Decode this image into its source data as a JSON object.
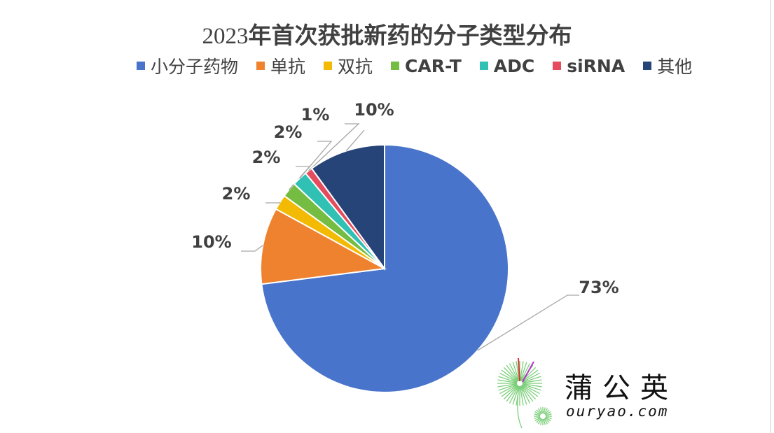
{
  "chart_data": {
    "type": "pie",
    "title_year": "2023",
    "title_rest": "年首次获批新药的分子类型分布",
    "legend_position": "top",
    "slices": [
      {
        "name": "小分子药物",
        "value": 73,
        "label": "73%",
        "color": "#4874cb"
      },
      {
        "name": "单抗",
        "value": 10,
        "label": "10%",
        "color": "#ee822f"
      },
      {
        "name": "双抗",
        "value": 2,
        "label": "2%",
        "color": "#f2ba02"
      },
      {
        "name": "CAR-T",
        "value": 2,
        "label": "2%",
        "color": "#75bd42"
      },
      {
        "name": "ADC",
        "value": 2,
        "label": "2%",
        "color": "#30c0b4"
      },
      {
        "name": "siRNA",
        "value": 1,
        "label": "1%",
        "color": "#e54c5e"
      },
      {
        "name": "其他",
        "value": 10,
        "label": "10%",
        "color": "#264478"
      }
    ]
  },
  "watermark": {
    "name": "蒲公英",
    "url": "ouryao.com"
  }
}
